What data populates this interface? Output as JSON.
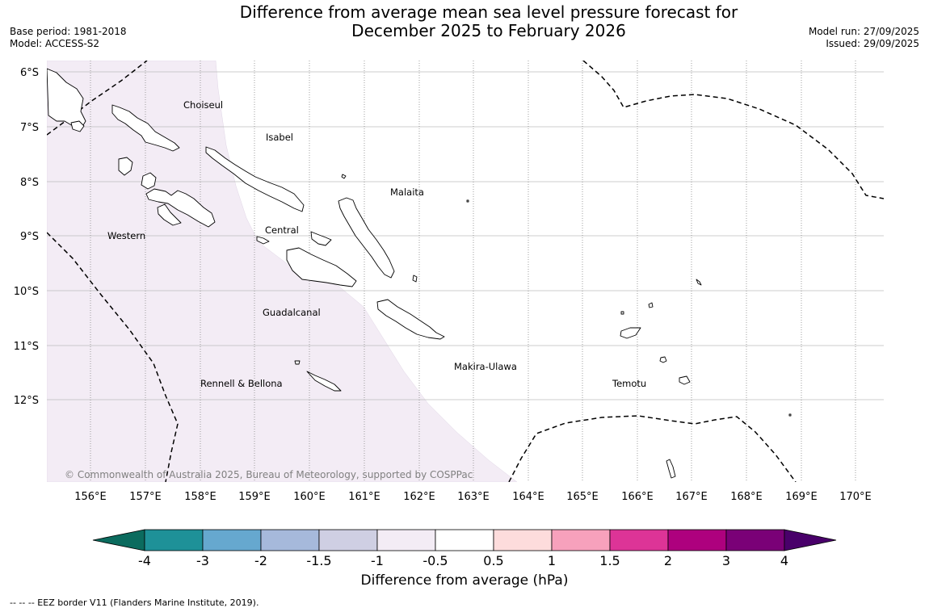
{
  "title": {
    "line1": "Difference from average mean sea level pressure forecast for",
    "line2": "December 2025 to February 2026"
  },
  "meta_left": {
    "base_period": "Base period: 1981-2018",
    "model": "Model: ACCESS-S2"
  },
  "meta_right": {
    "model_run": "Model run: 27/09/2025",
    "issued": "Issued: 29/09/2025"
  },
  "map": {
    "lat_labels": [
      "6°S",
      "7°S",
      "8°S",
      "9°S",
      "10°S",
      "11°S",
      "12°S"
    ],
    "lon_labels": [
      "156°E",
      "157°E",
      "158°E",
      "159°E",
      "160°E",
      "161°E",
      "162°E",
      "163°E",
      "164°E",
      "165°E",
      "166°E",
      "167°E",
      "168°E",
      "169°E",
      "170°E"
    ],
    "places": [
      {
        "name": "Choiseul"
      },
      {
        "name": "Isabel"
      },
      {
        "name": "Malaita"
      },
      {
        "name": "Central"
      },
      {
        "name": "Western"
      },
      {
        "name": "Guadalcanal"
      },
      {
        "name": "Makira-Ulawa"
      },
      {
        "name": "Temotu"
      },
      {
        "name": "Rennell & Bellona"
      }
    ],
    "copyright": "© Commonwealth of Australia 2025, Bureau of Meteorology, supported by COSPPac",
    "colors": {
      "shaded_band": "#f3ecf5",
      "coastline": "#000000",
      "gridline": "#bbbbbb",
      "eez_border": "#000000"
    }
  },
  "colorbar": {
    "ticks": [
      "-4",
      "-3",
      "-2",
      "-1.5",
      "-1",
      "-0.5",
      "0.5",
      "1",
      "1.5",
      "2",
      "3",
      "4"
    ],
    "colors": [
      "#0b6b5e",
      "#1e9198",
      "#66a8cf",
      "#a6b9db",
      "#cfcfe3",
      "#f3ecf5",
      "#ffffff",
      "#fddcdc",
      "#f7a1bc",
      "#dd3497",
      "#ae017e",
      "#7a0177",
      "#49006a"
    ],
    "title": "Difference from average (hPa)"
  },
  "footnote": "--  --  -- EEZ border V11 (Flanders Marine Institute, 2019)."
}
